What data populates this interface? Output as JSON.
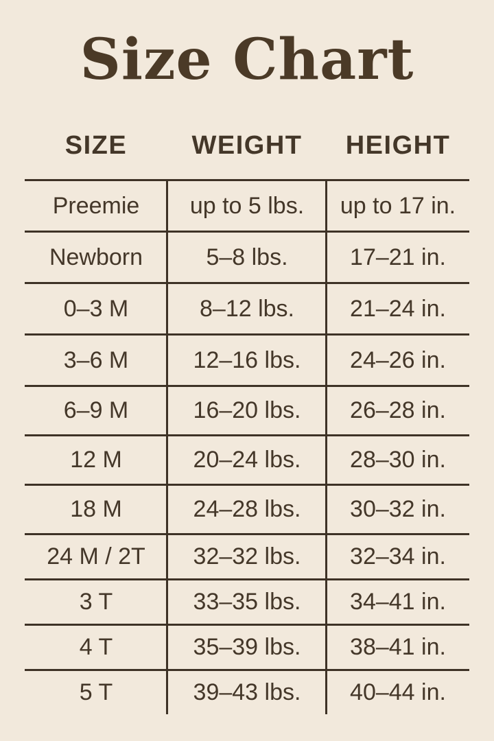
{
  "title": "Size Chart",
  "colors": {
    "background": "#F2E9DC",
    "text": "#443729",
    "title_text": "#4B3A27",
    "grid_lines": "#3E3226"
  },
  "table": {
    "headers": [
      "SIZE",
      "WEIGHT",
      "HEIGHT"
    ],
    "rows": [
      {
        "size": "Preemie",
        "weight": "up to 5 lbs.",
        "height": "up to 17 in."
      },
      {
        "size": "Newborn",
        "weight": "5–8 lbs.",
        "height": "17–21 in."
      },
      {
        "size": "0–3 M",
        "weight": "8–12 lbs.",
        "height": "21–24 in."
      },
      {
        "size": "3–6 M",
        "weight": "12–16 lbs.",
        "height": "24–26 in."
      },
      {
        "size": "6–9 M",
        "weight": "16–20 lbs.",
        "height": "26–28 in."
      },
      {
        "size": "12 M",
        "weight": "20–24 lbs.",
        "height": "28–30 in."
      },
      {
        "size": "18 M",
        "weight": "24–28 lbs.",
        "height": "30–32 in."
      },
      {
        "size": "24 M / 2T",
        "weight": "32–32 lbs.",
        "height": "32–34 in."
      },
      {
        "size": "3 T",
        "weight": "33–35 lbs.",
        "height": "34–41 in."
      },
      {
        "size": "4 T",
        "weight": "35–39 lbs.",
        "height": "38–41 in."
      },
      {
        "size": "5 T",
        "weight": "39–43 lbs.",
        "height": "40–44 in."
      }
    ]
  },
  "chart_data": {
    "type": "table",
    "title": "Size Chart",
    "columns": [
      "SIZE",
      "WEIGHT",
      "HEIGHT"
    ],
    "rows": [
      [
        "Preemie",
        "up to 5 lbs.",
        "up to 17 in."
      ],
      [
        "Newborn",
        "5–8 lbs.",
        "17–21 in."
      ],
      [
        "0–3 M",
        "8–12 lbs.",
        "21–24 in."
      ],
      [
        "3–6 M",
        "12–16 lbs.",
        "24–26 in."
      ],
      [
        "6–9 M",
        "16–20 lbs.",
        "26–28 in."
      ],
      [
        "12 M",
        "20–24 lbs.",
        "28–30 in."
      ],
      [
        "18 M",
        "24–28 lbs.",
        "30–32 in."
      ],
      [
        "24 M / 2T",
        "32–32 lbs.",
        "32–34 in."
      ],
      [
        "3 T",
        "33–35 lbs.",
        "34–41 in."
      ],
      [
        "4 T",
        "35–39 lbs.",
        "38–41 in."
      ],
      [
        "5 T",
        "39–43 lbs.",
        "40–44 in."
      ]
    ]
  }
}
